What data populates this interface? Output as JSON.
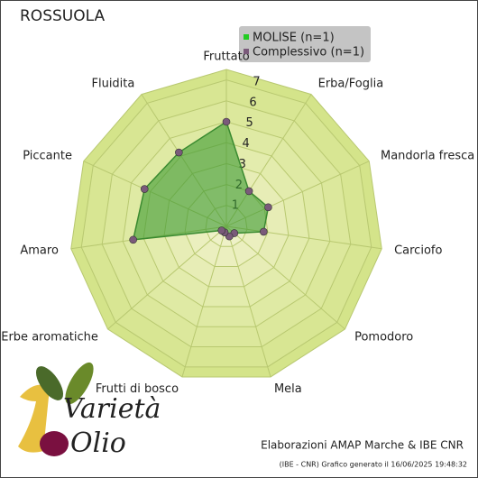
{
  "chart_data": {
    "type": "radar",
    "title": "ROSSUOLA",
    "categories": [
      "Fruttato",
      "Erba/Foglia",
      "Mandorla fresca",
      "Carciofo",
      "Pomodoro",
      "Mela",
      "Frutti di bosco",
      "Erbe aromatiche",
      "Amaro",
      "Piccante",
      "Fluidita"
    ],
    "series": [
      {
        "name": "MOLISE  (n=1)",
        "color": "#22cc22",
        "values": [
          5,
          2,
          2.2,
          1.8,
          0.5,
          0.5,
          0.3,
          0.3,
          4.5,
          4.3,
          4.2
        ]
      },
      {
        "name": "Complessivo (n=1)",
        "color": "#7a5a7a",
        "values": [
          5,
          2,
          2.2,
          1.8,
          0.5,
          0.5,
          0.3,
          0.3,
          4.5,
          4.3,
          4.2
        ]
      }
    ],
    "rlim": [
      0,
      7.5
    ],
    "rticks": [
      1,
      2,
      3,
      4,
      5,
      6,
      7
    ],
    "annotations": [
      "Elaborazioni AMAP Marche & IBE CNR",
      "(IBE - CNR) Grafico generato il 16/06/2025 19:48:32",
      "Varietà",
      "Olio"
    ]
  }
}
